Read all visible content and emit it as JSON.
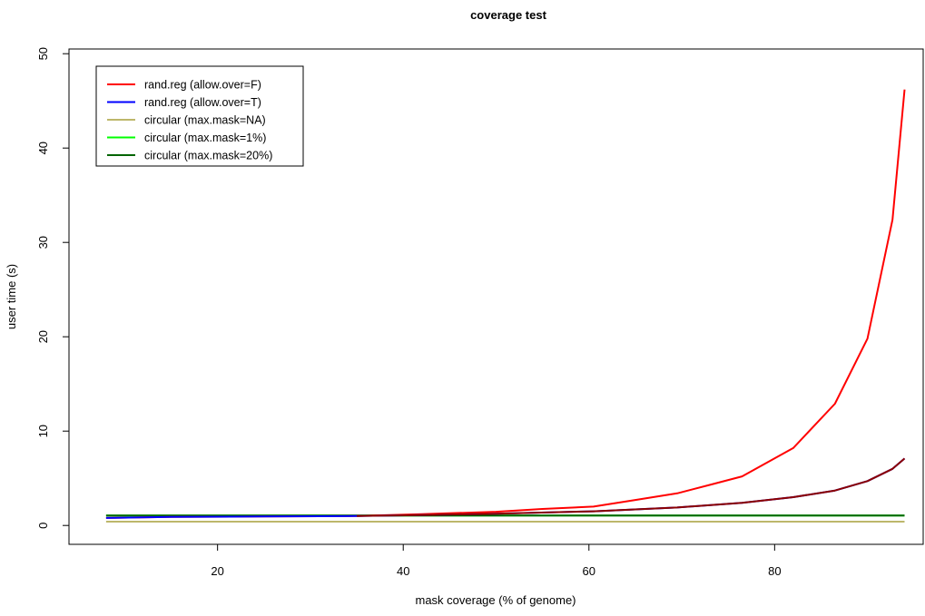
{
  "chart_data": {
    "type": "line",
    "title": "coverage test",
    "xlabel": "mask coverage (% of genome)",
    "ylabel": "user time (s)",
    "xlim": [
      4,
      96
    ],
    "ylim": [
      -2,
      50.5
    ],
    "xticks": [
      20,
      40,
      60,
      80
    ],
    "yticks": [
      0,
      10,
      20,
      30,
      40,
      50
    ],
    "legend_position": "top-left",
    "grid": false,
    "series": [
      {
        "name": "rand.reg (allow.over=F)",
        "color": "#ff0000",
        "x": [
          8,
          15,
          25,
          35,
          42,
          50,
          55,
          60.5,
          65,
          69.5,
          73,
          76.5,
          82,
          86.5,
          90,
          92.7,
          94
        ],
        "y": [
          0.8,
          0.9,
          0.95,
          1.0,
          1.2,
          1.45,
          1.75,
          2.0,
          2.7,
          3.4,
          4.3,
          5.2,
          8.2,
          12.9,
          19.8,
          32.4,
          46.2
        ]
      },
      {
        "name": "rand.reg (allow.over=T)",
        "color": "#0000ff",
        "x": [
          8,
          15,
          25,
          35,
          42,
          50,
          60.5,
          69.5,
          76.5,
          82,
          86.5,
          90,
          92.7,
          94
        ],
        "y": [
          0.8,
          0.9,
          0.95,
          1.0,
          1.1,
          1.25,
          1.5,
          1.9,
          2.4,
          3.0,
          3.7,
          4.7,
          6.0,
          7.1
        ]
      },
      {
        "name": "circular (max.mask=NA)",
        "color": "#bdb76b",
        "x": [
          8,
          94
        ],
        "y": [
          0.4,
          0.4
        ]
      },
      {
        "name": "circular (max.mask=1%)",
        "color": "#00ff00",
        "x": [
          8,
          94
        ],
        "y": [
          1.05,
          1.05
        ]
      },
      {
        "name": "circular (max.mask=20%)",
        "color": "#006400",
        "x": [
          8,
          35,
          60,
          80,
          94
        ],
        "y": [
          1.05,
          1.05,
          1.05,
          1.05,
          1.05
        ]
      }
    ],
    "overlay_series": {
      "name": "",
      "color": "#8b0000",
      "x": [
        35,
        42,
        50,
        60.5,
        69.5,
        76.5,
        82,
        86.5,
        90,
        92.7,
        94
      ],
      "y": [
        1.0,
        1.1,
        1.25,
        1.5,
        1.9,
        2.4,
        3.0,
        3.7,
        4.7,
        6.0,
        7.1
      ]
    }
  }
}
